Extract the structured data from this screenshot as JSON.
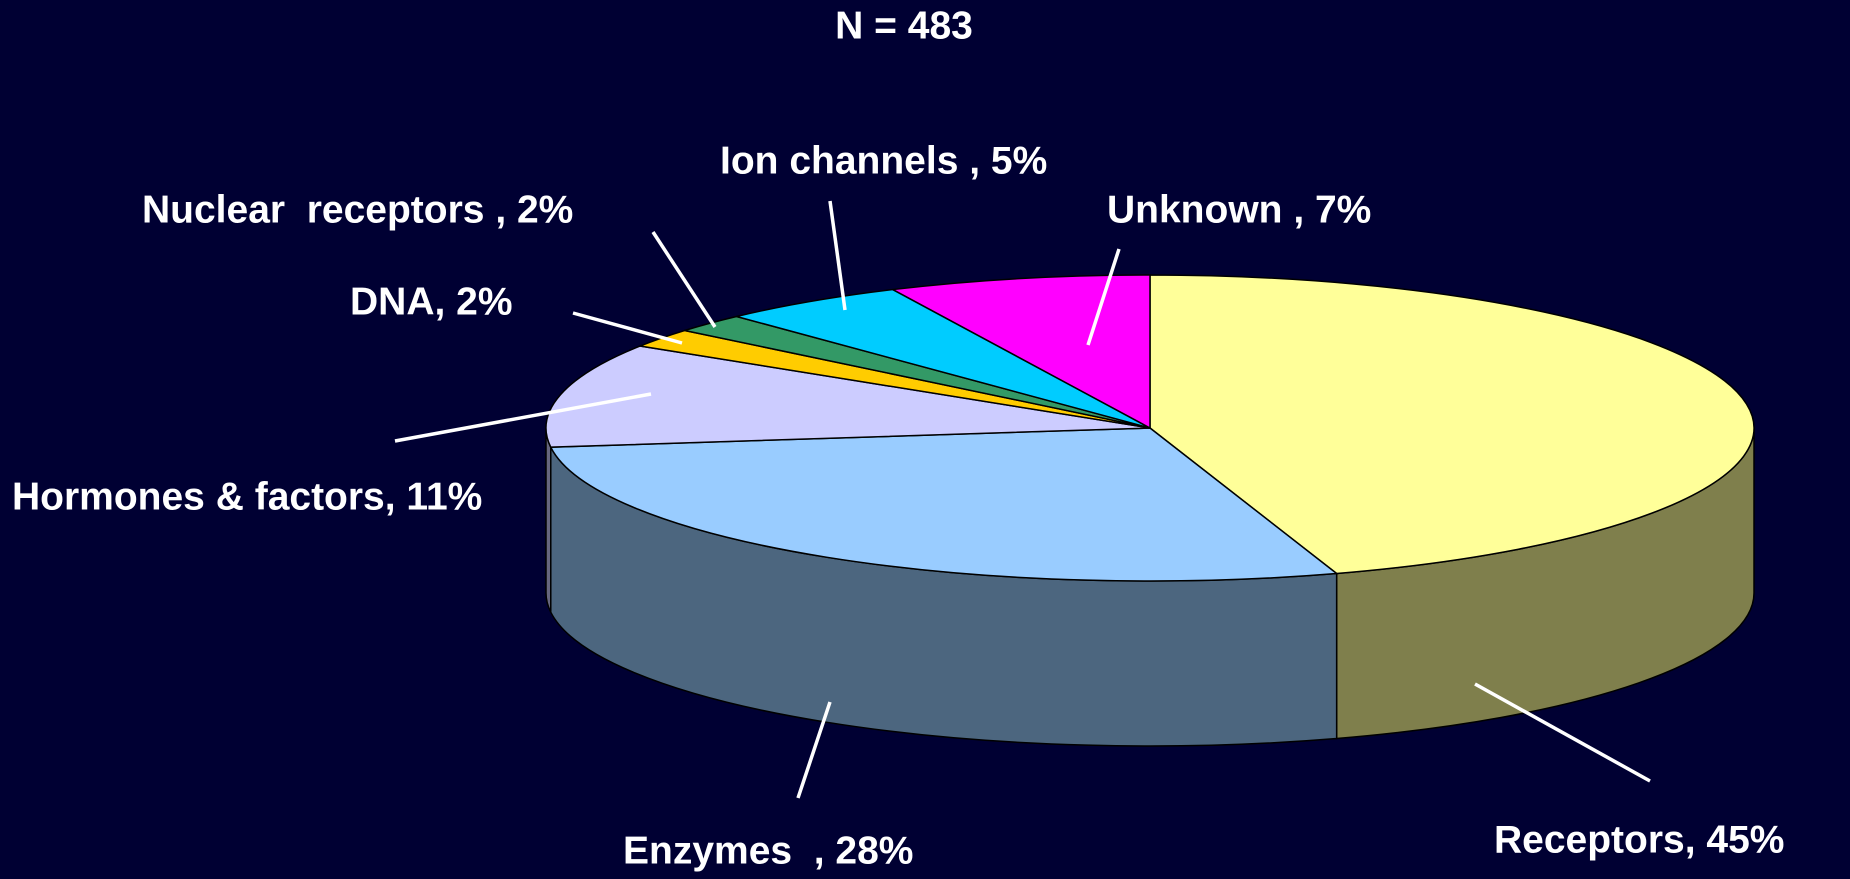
{
  "chart_data": {
    "type": "pie3d",
    "title": "N = 483",
    "values": [
      45,
      28,
      11,
      2,
      2,
      5,
      7
    ],
    "value_labels": [
      "Receptors, 45%",
      "Enzymes  , 28%",
      "Hormones & factors, 11%",
      "DNA, 2%",
      "Nuclear  receptors , 2%",
      "Ion channels , 5%",
      "Unknown , 7%"
    ],
    "colors": [
      "#ffff99",
      "#99ccff",
      "#ccccff",
      "#ffcc00",
      "#339966",
      "#00ccff",
      "#ff00ff"
    ]
  }
}
